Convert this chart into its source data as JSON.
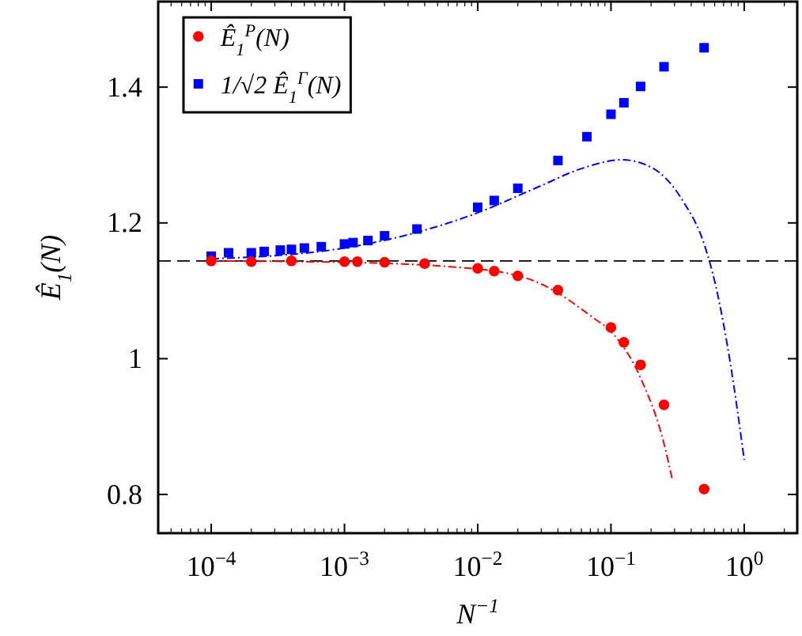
{
  "chart_data": {
    "type": "scatter",
    "xlabel": "N$^{−1}$",
    "ylabel": "Ê$_{1}$(N)",
    "log": "x",
    "grid": false,
    "legend": "top left",
    "xlim": [
      4e-05,
      2.5
    ],
    "ylim": [
      0.743,
      1.526
    ],
    "xticks": [
      {
        "value": 0.0001,
        "label": "10$^{−4}$"
      },
      {
        "value": 0.001,
        "label": "10$^{−3}$"
      },
      {
        "value": 0.01,
        "label": "10$^{−2}$"
      },
      {
        "value": 0.1,
        "label": "10$^{−1}$"
      },
      {
        "value": 1,
        "label": "10$^{0}$"
      }
    ],
    "yticks": [
      0.8,
      1,
      1.2,
      1.4
    ],
    "ref_lines": [
      {
        "axis": "y",
        "value": 1.144,
        "color": "#000000",
        "line_style": "dashed"
      }
    ],
    "series": [
      {
        "name": "Ê$_{1}$$^{P}$(N)",
        "marker": "circle",
        "color": "#ff0000",
        "x": [
          0.0001,
          0.0002,
          0.0004,
          0.001,
          0.00125,
          0.002,
          0.004,
          0.01,
          0.0133,
          0.02,
          0.04,
          0.1,
          0.125,
          0.167,
          0.25,
          0.5
        ],
        "values": [
          1.144,
          1.143,
          1.144,
          1.143,
          1.143,
          1.142,
          1.14,
          1.133,
          1.129,
          1.122,
          1.101,
          1.046,
          1.024,
          0.991,
          0.932,
          0.808
        ]
      },
      {
        "name": "1/√2 Ê$_{1}$$^{Γ}$(N)",
        "marker": "square",
        "color": "#0000ff",
        "x": [
          0.0001,
          0.000135,
          0.0002,
          0.00025,
          0.00033,
          0.0004,
          0.0005,
          0.00067,
          0.001,
          0.00116,
          0.0015,
          0.002,
          0.0035,
          0.01,
          0.0133,
          0.02,
          0.04,
          0.066,
          0.1,
          0.125,
          0.167,
          0.25,
          0.5
        ],
        "values": [
          1.151,
          1.156,
          1.156,
          1.158,
          1.16,
          1.161,
          1.163,
          1.165,
          1.169,
          1.171,
          1.174,
          1.181,
          1.191,
          1.223,
          1.233,
          1.251,
          1.292,
          1.327,
          1.36,
          1.377,
          1.401,
          1.43,
          1.458
        ]
      },
      {
        "type": "line",
        "marker": "none",
        "line_style": "dashed",
        "color": "#ff0000",
        "x": [
          0.0001,
          0.001,
          0.01,
          0.03,
          0.074,
          0.1,
          0.17,
          0.25,
          0.29
        ],
        "values": [
          1.144,
          1.142,
          1.132,
          1.11,
          1.06,
          1.04,
          0.968,
          0.875,
          0.82
        ]
      },
      {
        "type": "line",
        "marker": "none",
        "line_style": "dashed",
        "color": "#0000ff",
        "x": [
          0.0001,
          0.001,
          0.01,
          0.03,
          0.06,
          0.12,
          0.2,
          0.35,
          0.5,
          0.61,
          0.79,
          1.0
        ],
        "values": [
          1.147,
          1.163,
          1.215,
          1.255,
          1.28,
          1.293,
          1.282,
          1.231,
          1.169,
          1.108,
          0.991,
          0.851
        ]
      }
    ]
  }
}
